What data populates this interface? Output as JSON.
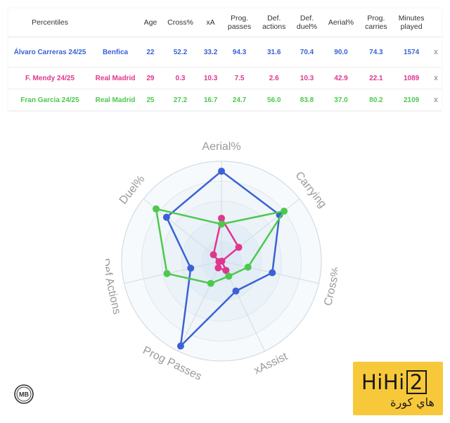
{
  "table": {
    "headers": [
      "Percentiles",
      "Age",
      "Cross%",
      "xA",
      "Prog.\npasses",
      "Def.\nactions",
      "Def.\nduel%",
      "Aerial%",
      "Prog.\ncarries",
      "Minutes\nplayed"
    ],
    "remove_label": "x",
    "rows": [
      {
        "player": "Álvaro Carreras 24/25",
        "team": "Benfica",
        "age": "22",
        "cross": "52.2",
        "xa": "33.2",
        "prog_passes": "94.3",
        "def_actions": "31.6",
        "def_duel": "70.4",
        "aerial": "90.0",
        "prog_carries": "74.3",
        "minutes": "1574",
        "color": "#3a62d6"
      },
      {
        "player": "F. Mendy 24/25",
        "team": "Real Madrid",
        "age": "29",
        "cross": "0.3",
        "xa": "10.3",
        "prog_passes": "7.5",
        "def_actions": "2.6",
        "def_duel": "10.3",
        "aerial": "42.9",
        "prog_carries": "22.1",
        "minutes": "1089",
        "color": "#e0368c"
      },
      {
        "player": "Fran Garcia 24/25",
        "team": "Real Madrid",
        "age": "25",
        "cross": "27.2",
        "xa": "16.7",
        "prog_passes": "24.7",
        "def_actions": "56.0",
        "def_duel": "83.8",
        "aerial": "37.0",
        "prog_carries": "80.2",
        "minutes": "2109",
        "color": "#4cc94c"
      }
    ]
  },
  "chart_data": {
    "type": "radar",
    "axes": [
      "Aerial%",
      "Carrying",
      "Cross%",
      "xAssist",
      "Prog Passes",
      "Def Actions",
      "Duel%"
    ],
    "range": [
      0,
      100
    ],
    "series": [
      {
        "name": "Álvaro Carreras 24/25",
        "color": "#3a62d6",
        "values": [
          90.0,
          74.3,
          52.2,
          33.2,
          94.3,
          31.6,
          70.4
        ]
      },
      {
        "name": "F. Mendy 24/25",
        "color": "#e0368c",
        "values": [
          42.9,
          22.1,
          0.3,
          10.3,
          7.5,
          2.6,
          10.3
        ]
      },
      {
        "name": "Fran Garcia 24/25",
        "color": "#4cc94c",
        "values": [
          37.0,
          80.2,
          27.2,
          16.7,
          24.7,
          56.0,
          83.8
        ]
      }
    ]
  },
  "logo": {
    "text": "MB"
  },
  "brand": {
    "main_a": "HiHi",
    "main_b": "2",
    "sub": "هاي كورة"
  }
}
